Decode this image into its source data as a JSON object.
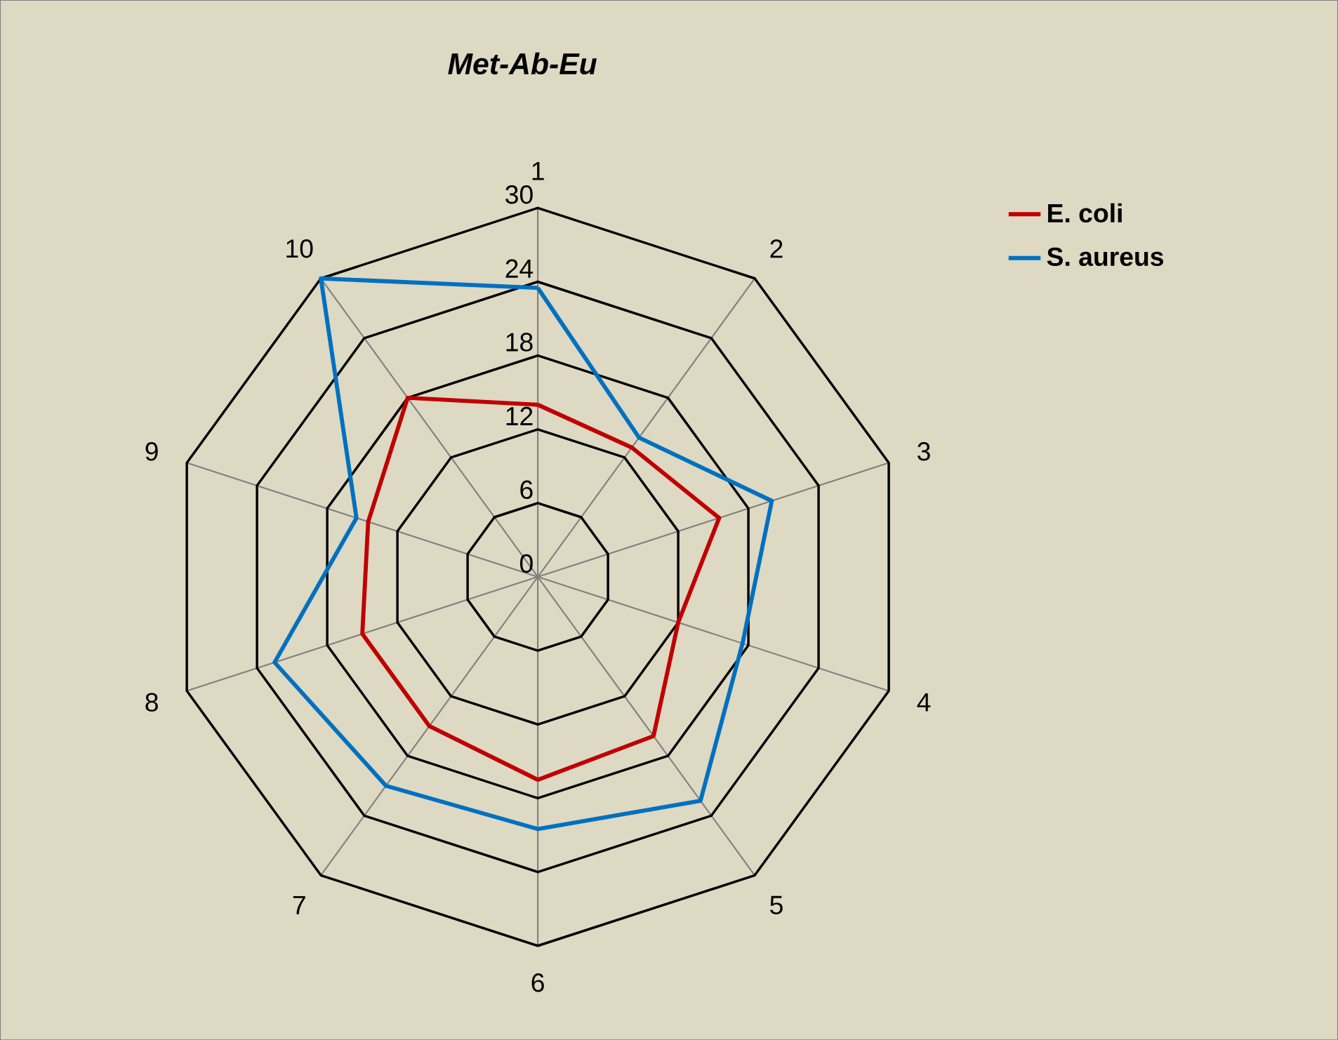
{
  "chart_data": {
    "type": "radar",
    "title": "*Met-Ab-Eu*",
    "categories": [
      "1",
      "2",
      "3",
      "4",
      "5",
      "6",
      "7",
      "8",
      "9",
      "10"
    ],
    "series": [
      {
        "name": "**E. coli**",
        "color": "#c00000",
        "values": [
          14,
          13,
          15.5,
          12,
          16,
          16.5,
          15,
          15,
          14.5,
          18
        ]
      },
      {
        "name": "**S. aureus**",
        "color": "#0070c0",
        "values": [
          23.5,
          14,
          20,
          17.5,
          22.5,
          20.5,
          21,
          22.5,
          15.5,
          30
        ]
      }
    ],
    "ylim": [
      0,
      30
    ],
    "yticks": [
      0,
      6,
      12,
      18,
      24,
      30
    ],
    "grid": true,
    "legend": "top right"
  }
}
